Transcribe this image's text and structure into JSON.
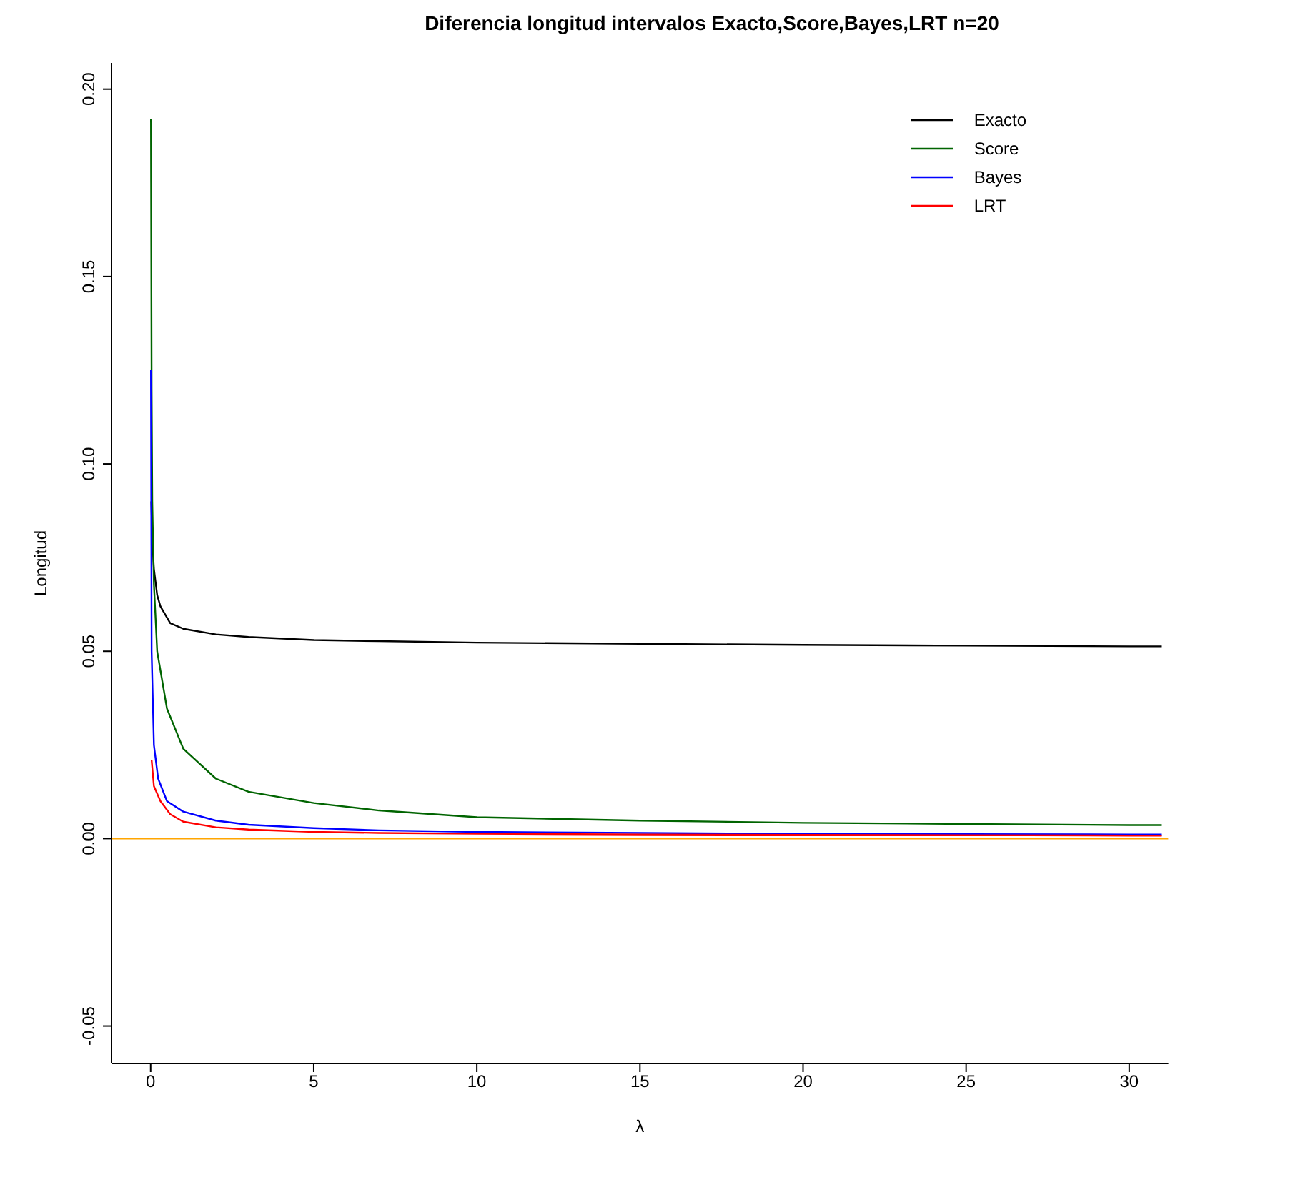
{
  "chart_data": {
    "type": "line",
    "title": "Diferencia longitud intervalos Exacto,Score,Bayes,LRT n=20",
    "xlabel": "λ",
    "ylabel": "Longitud",
    "xlim": [
      -1.2,
      31.2
    ],
    "xticks": [
      0,
      5,
      10,
      15,
      20,
      25,
      30
    ],
    "ylim": [
      -0.06,
      0.207
    ],
    "yticks": [
      {
        "value": -0.05,
        "label": "-0.05"
      },
      {
        "value": 0,
        "label": "0.00"
      },
      0.05,
      {
        "value": 0.1,
        "label": "0.10"
      },
      0.15,
      {
        "value": 0.2,
        "label": "0.20"
      }
    ],
    "legend": "top right",
    "series": [
      {
        "name": "Exacto",
        "color": "#000000",
        "x": [
          0.02,
          0.05,
          0.1,
          0.2,
          0.3,
          0.6,
          1,
          2,
          3,
          5,
          7,
          10,
          15,
          20,
          25,
          30,
          31
        ],
        "values": [
          0.09,
          0.08,
          0.072,
          0.065,
          0.062,
          0.0575,
          0.056,
          0.0545,
          0.0538,
          0.053,
          0.0527,
          0.0523,
          0.052,
          0.0517,
          0.0515,
          0.0513,
          0.0513
        ]
      },
      {
        "name": "Score",
        "color": "#006400",
        "x": [
          0.01,
          0.03,
          0.05,
          0.1,
          0.2,
          0.5,
          1,
          2,
          3,
          5,
          7,
          10,
          15,
          20,
          25,
          30,
          31
        ],
        "values": [
          0.192,
          0.12,
          0.09,
          0.068,
          0.05,
          0.0347,
          0.024,
          0.016,
          0.0125,
          0.0095,
          0.0075,
          0.0057,
          0.0048,
          0.0042,
          0.0039,
          0.0036,
          0.0036
        ]
      },
      {
        "name": "Bayes",
        "color": "#0000ff",
        "x": [
          0.01,
          0.03,
          0.1,
          0.23,
          0.5,
          1,
          2,
          3,
          5,
          7,
          10,
          15,
          20,
          25,
          30,
          31
        ],
        "values": [
          0.125,
          0.05,
          0.025,
          0.016,
          0.01,
          0.0072,
          0.0048,
          0.0037,
          0.0028,
          0.0022,
          0.0018,
          0.0015,
          0.0013,
          0.0012,
          0.0011,
          0.0011
        ]
      },
      {
        "name": "LRT",
        "color": "#ff0000",
        "x": [
          0.03,
          0.1,
          0.3,
          0.6,
          1,
          2,
          3,
          5,
          7,
          10,
          15,
          20,
          25,
          30,
          31
        ],
        "values": [
          0.021,
          0.014,
          0.01,
          0.0065,
          0.0045,
          0.003,
          0.0024,
          0.0018,
          0.0015,
          0.0013,
          0.0011,
          0.001,
          0.0009,
          0.0008,
          0.0008
        ]
      }
    ],
    "ref_lines": [
      {
        "axis": "y",
        "value": 0,
        "color": "#ffa500"
      }
    ]
  }
}
